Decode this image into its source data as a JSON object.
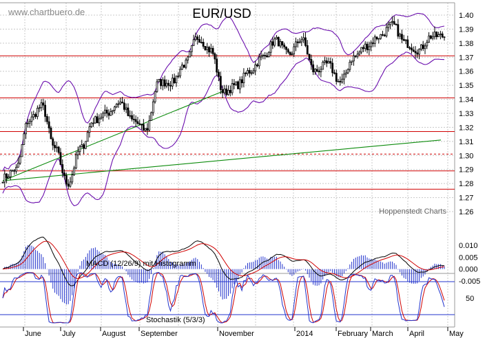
{
  "header": {
    "watermark": "www.chartbuero.de",
    "title": "EUR/USD",
    "credit": "Hoppenstedt Charts"
  },
  "colors": {
    "grid": "#c8c8c8",
    "candle": "#000000",
    "hline": "#d00000",
    "trend": "#0a8a0a",
    "bands": "#6a0dad",
    "macd_line": "#000000",
    "signal_line": "#d00000",
    "histogram": "#2233cc",
    "stoch_k": "#2233cc",
    "stoch_d": "#d00000",
    "stoch_level": "#2233cc"
  },
  "chart_data": [
    {
      "type": "candlestick",
      "title": "EUR/USD",
      "x_labels": [
        "June",
        "July",
        "August",
        "September",
        "November",
        "2014",
        "February",
        "March",
        "April",
        "May"
      ],
      "y_ticks": [
        "1.40",
        "1.39",
        "1.38",
        "1.37",
        "1.36",
        "1.35",
        "1.34",
        "1.33",
        "1.32",
        "1.31",
        "1.30",
        "1.29",
        "1.28",
        "1.27",
        "1.26"
      ],
      "ylim": [
        1.26,
        1.4
      ],
      "grid": true,
      "legend": "none",
      "overlay": [
        "Bollinger bands",
        "horizontal support/resistance lines",
        "trend lines"
      ],
      "horizontal_lines": [
        1.371,
        1.341,
        1.317,
        1.289,
        1.276
      ],
      "dashed_line": 1.301,
      "trend_lines": [
        {
          "from": [
            "May",
            1.282
          ],
          "to": [
            "mid-October",
            1.347
          ]
        },
        {
          "from": [
            "May",
            1.282
          ],
          "to": [
            "April",
            1.311
          ]
        }
      ],
      "close_path": [
        [
          "May",
          1.284
        ],
        [
          "mid-May",
          1.29
        ],
        [
          "June",
          1.325
        ],
        [
          "mid-June",
          1.335
        ],
        [
          "late June",
          1.305
        ],
        [
          "July",
          1.28
        ],
        [
          "mid-July",
          1.305
        ],
        [
          "late July",
          1.325
        ],
        [
          "August",
          1.33
        ],
        [
          "mid-August",
          1.338
        ],
        [
          "late August",
          1.325
        ],
        [
          "September",
          1.318
        ],
        [
          "mid-September",
          1.352
        ],
        [
          "late September",
          1.352
        ],
        [
          "early October",
          1.365
        ],
        [
          "mid-October",
          1.384
        ],
        [
          "late October",
          1.375
        ],
        [
          "November",
          1.345
        ],
        [
          "mid-November",
          1.35
        ],
        [
          "late November",
          1.36
        ],
        [
          "December",
          1.37
        ],
        [
          "mid-December",
          1.382
        ],
        [
          "late December",
          1.372
        ],
        [
          "2014",
          1.383
        ],
        [
          "mid-January",
          1.36
        ],
        [
          "late January",
          1.365
        ],
        [
          "February",
          1.352
        ],
        [
          "mid-February",
          1.37
        ],
        [
          "late February",
          1.378
        ],
        [
          "March",
          1.385
        ],
        [
          "mid-March",
          1.393
        ],
        [
          "late March",
          1.38
        ],
        [
          "early April",
          1.375
        ],
        [
          "April",
          1.385
        ],
        [
          "late April",
          1.385
        ]
      ]
    },
    {
      "type": "line",
      "title": "MACD (12/26/9) mit Histogramm",
      "y_ticks": [
        "0.010",
        "0.005",
        "0.000",
        "-0.005"
      ],
      "ylim": [
        -0.007,
        0.011
      ],
      "series": [
        {
          "name": "MACD",
          "values_hint": "oscillates between -0.004 and 0.008"
        },
        {
          "name": "Signal",
          "values_hint": "smoothed MACD"
        },
        {
          "name": "Histogramm",
          "values_hint": "MACD minus Signal"
        }
      ]
    },
    {
      "type": "line",
      "title": "Stochastik (5/3/3)",
      "y_ticks": [
        "50"
      ],
      "ylim": [
        0,
        100
      ],
      "levels": [
        80,
        20
      ],
      "series": [
        {
          "name": "%K",
          "values_hint": "oscillates 10-95"
        },
        {
          "name": "%D",
          "values_hint": "smoothed %K"
        }
      ]
    }
  ]
}
